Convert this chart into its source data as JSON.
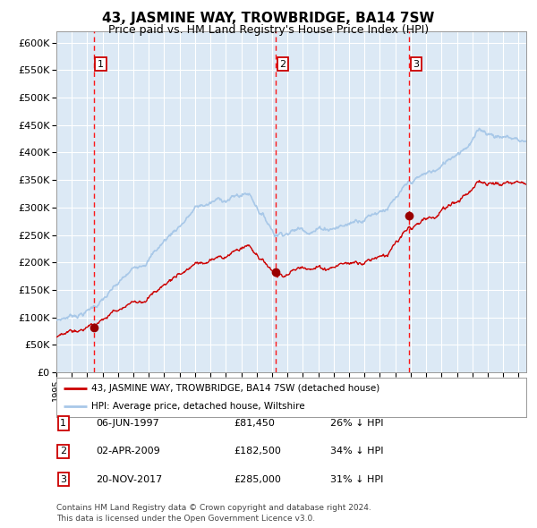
{
  "title": "43, JASMINE WAY, TROWBRIDGE, BA14 7SW",
  "subtitle": "Price paid vs. HM Land Registry's House Price Index (HPI)",
  "title_fontsize": 11,
  "subtitle_fontsize": 9,
  "background_color": "#ffffff",
  "plot_bg_color": "#dce9f5",
  "grid_color": "#ffffff",
  "ylim": [
    0,
    620000
  ],
  "yticks": [
    0,
    50000,
    100000,
    150000,
    200000,
    250000,
    300000,
    350000,
    400000,
    450000,
    500000,
    550000,
    600000
  ],
  "sale1_date": 1997.43,
  "sale1_price": 81450,
  "sale2_date": 2009.25,
  "sale2_price": 182500,
  "sale3_date": 2017.89,
  "sale3_price": 285000,
  "hpi_color": "#a8c8e8",
  "price_color": "#cc0000",
  "marker_color": "#990000",
  "legend_label_price": "43, JASMINE WAY, TROWBRIDGE, BA14 7SW (detached house)",
  "legend_label_hpi": "HPI: Average price, detached house, Wiltshire",
  "table_rows": [
    {
      "num": "1",
      "date": "06-JUN-1997",
      "price": "£81,450",
      "pct": "26% ↓ HPI"
    },
    {
      "num": "2",
      "date": "02-APR-2009",
      "price": "£182,500",
      "pct": "34% ↓ HPI"
    },
    {
      "num": "3",
      "date": "20-NOV-2017",
      "price": "£285,000",
      "pct": "31% ↓ HPI"
    }
  ],
  "footnote1": "Contains HM Land Registry data © Crown copyright and database right 2024.",
  "footnote2": "This data is licensed under the Open Government Licence v3.0.",
  "xmin": 1995.0,
  "xmax": 2025.5
}
